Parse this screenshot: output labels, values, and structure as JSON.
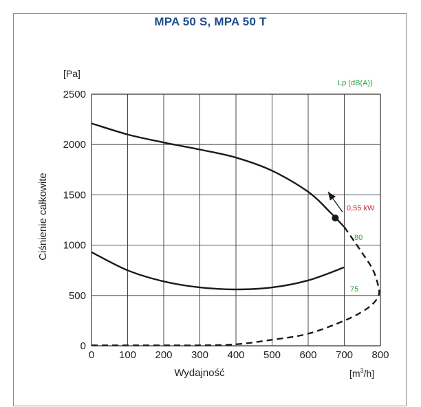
{
  "chart_data": {
    "type": "line",
    "title": "MPA 50 S, MPA 50 T",
    "xlabel": "Wydajność",
    "xunit": "[m³/h]",
    "ylabel": "Ciśnienie całkowite",
    "yunit": "[Pa]",
    "xlim": [
      0,
      800
    ],
    "ylim": [
      0,
      2500
    ],
    "xticks": [
      0,
      100,
      200,
      300,
      400,
      500,
      600,
      700,
      800
    ],
    "yticks": [
      0,
      500,
      1000,
      1500,
      2000,
      2500
    ],
    "grid": true,
    "series": [
      {
        "style": "solid",
        "color": "#1a1a1a",
        "x": [
          0,
          100,
          200,
          300,
          400,
          500,
          600,
          660,
          700
        ],
        "y": [
          2210,
          2100,
          2020,
          1950,
          1870,
          1740,
          1530,
          1330,
          1180
        ]
      },
      {
        "style": "solid",
        "color": "#1a1a1a",
        "x": [
          0,
          100,
          200,
          300,
          400,
          500,
          600,
          700
        ],
        "y": [
          930,
          750,
          640,
          580,
          560,
          580,
          650,
          780
        ]
      },
      {
        "style": "dashed",
        "color": "#1a1a1a",
        "x": [
          0,
          100,
          200,
          300,
          400,
          500,
          600,
          700,
          750,
          780,
          795,
          795,
          780,
          750,
          700
        ],
        "y": [
          5,
          5,
          5,
          5,
          15,
          60,
          120,
          250,
          340,
          420,
          500,
          580,
          750,
          920,
          1180
        ]
      }
    ],
    "operating_point": {
      "x": 675,
      "y": 1270
    },
    "arrow": {
      "from": [
        695,
        1330
      ],
      "to": [
        655,
        1530
      ]
    },
    "annotations": {
      "power": {
        "text": "0,55 kW",
        "color": "#d42a2a"
      },
      "noise_label": {
        "text": "Lp (dB(A))",
        "color": "#2f9e44"
      },
      "noise_levels": [
        {
          "text": "80",
          "color": "#2f9e44"
        },
        {
          "text": "75",
          "color": "#2f9e44"
        }
      ]
    }
  }
}
